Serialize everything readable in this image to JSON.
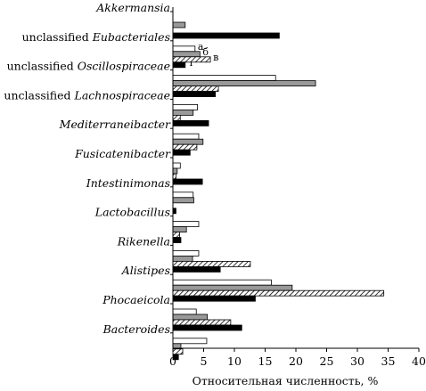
{
  "chart_data": {
    "type": "bar",
    "orientation": "horizontal",
    "xlabel": "Относительная численность, %",
    "ylabel": "",
    "title": "",
    "xlim": [
      0,
      40
    ],
    "xticks": [
      0,
      5,
      10,
      15,
      20,
      25,
      30,
      35,
      40
    ],
    "grid": false,
    "categories": [
      {
        "prefix": "",
        "name": "Akkermansia"
      },
      {
        "prefix": "unclassified ",
        "name": "Eubacteriales"
      },
      {
        "prefix": "unclassified ",
        "name": "Oscillospiraceae"
      },
      {
        "prefix": "unclassified ",
        "name": "Lachnospiraceae"
      },
      {
        "prefix": "",
        "name": "Mediterraneibacter"
      },
      {
        "prefix": "",
        "name": "Fusicatenibacter"
      },
      {
        "prefix": "",
        "name": "Intestinimonas"
      },
      {
        "prefix": "",
        "name": "Lactobacillus"
      },
      {
        "prefix": "",
        "name": "Rikenella"
      },
      {
        "prefix": "",
        "name": "Alistipes"
      },
      {
        "prefix": "",
        "name": "Phocaeicola"
      },
      {
        "prefix": "",
        "name": "Bacteroides"
      }
    ],
    "series": [
      {
        "name": "а",
        "fill": "#ffffff",
        "values": [
          0,
          3.6,
          16.7,
          4.0,
          4.2,
          1.2,
          3.3,
          4.2,
          4.2,
          16.0,
          3.8,
          5.5
        ]
      },
      {
        "name": "б",
        "fill": "#999999",
        "values": [
          2.0,
          4.4,
          23.2,
          3.3,
          4.9,
          0.7,
          3.4,
          2.2,
          3.2,
          19.4,
          5.6,
          1.3
        ]
      },
      {
        "name": "в",
        "fill": "hatch",
        "values": [
          0,
          6.1,
          7.4,
          1.2,
          3.9,
          0.5,
          0,
          1.1,
          12.6,
          34.3,
          9.4,
          1.6
        ]
      },
      {
        "name": "г",
        "fill": "#000000",
        "values": [
          17.3,
          2.0,
          6.9,
          5.8,
          2.8,
          4.8,
          0.5,
          1.3,
          7.7,
          13.4,
          11.2,
          0.9
        ]
      }
    ]
  }
}
